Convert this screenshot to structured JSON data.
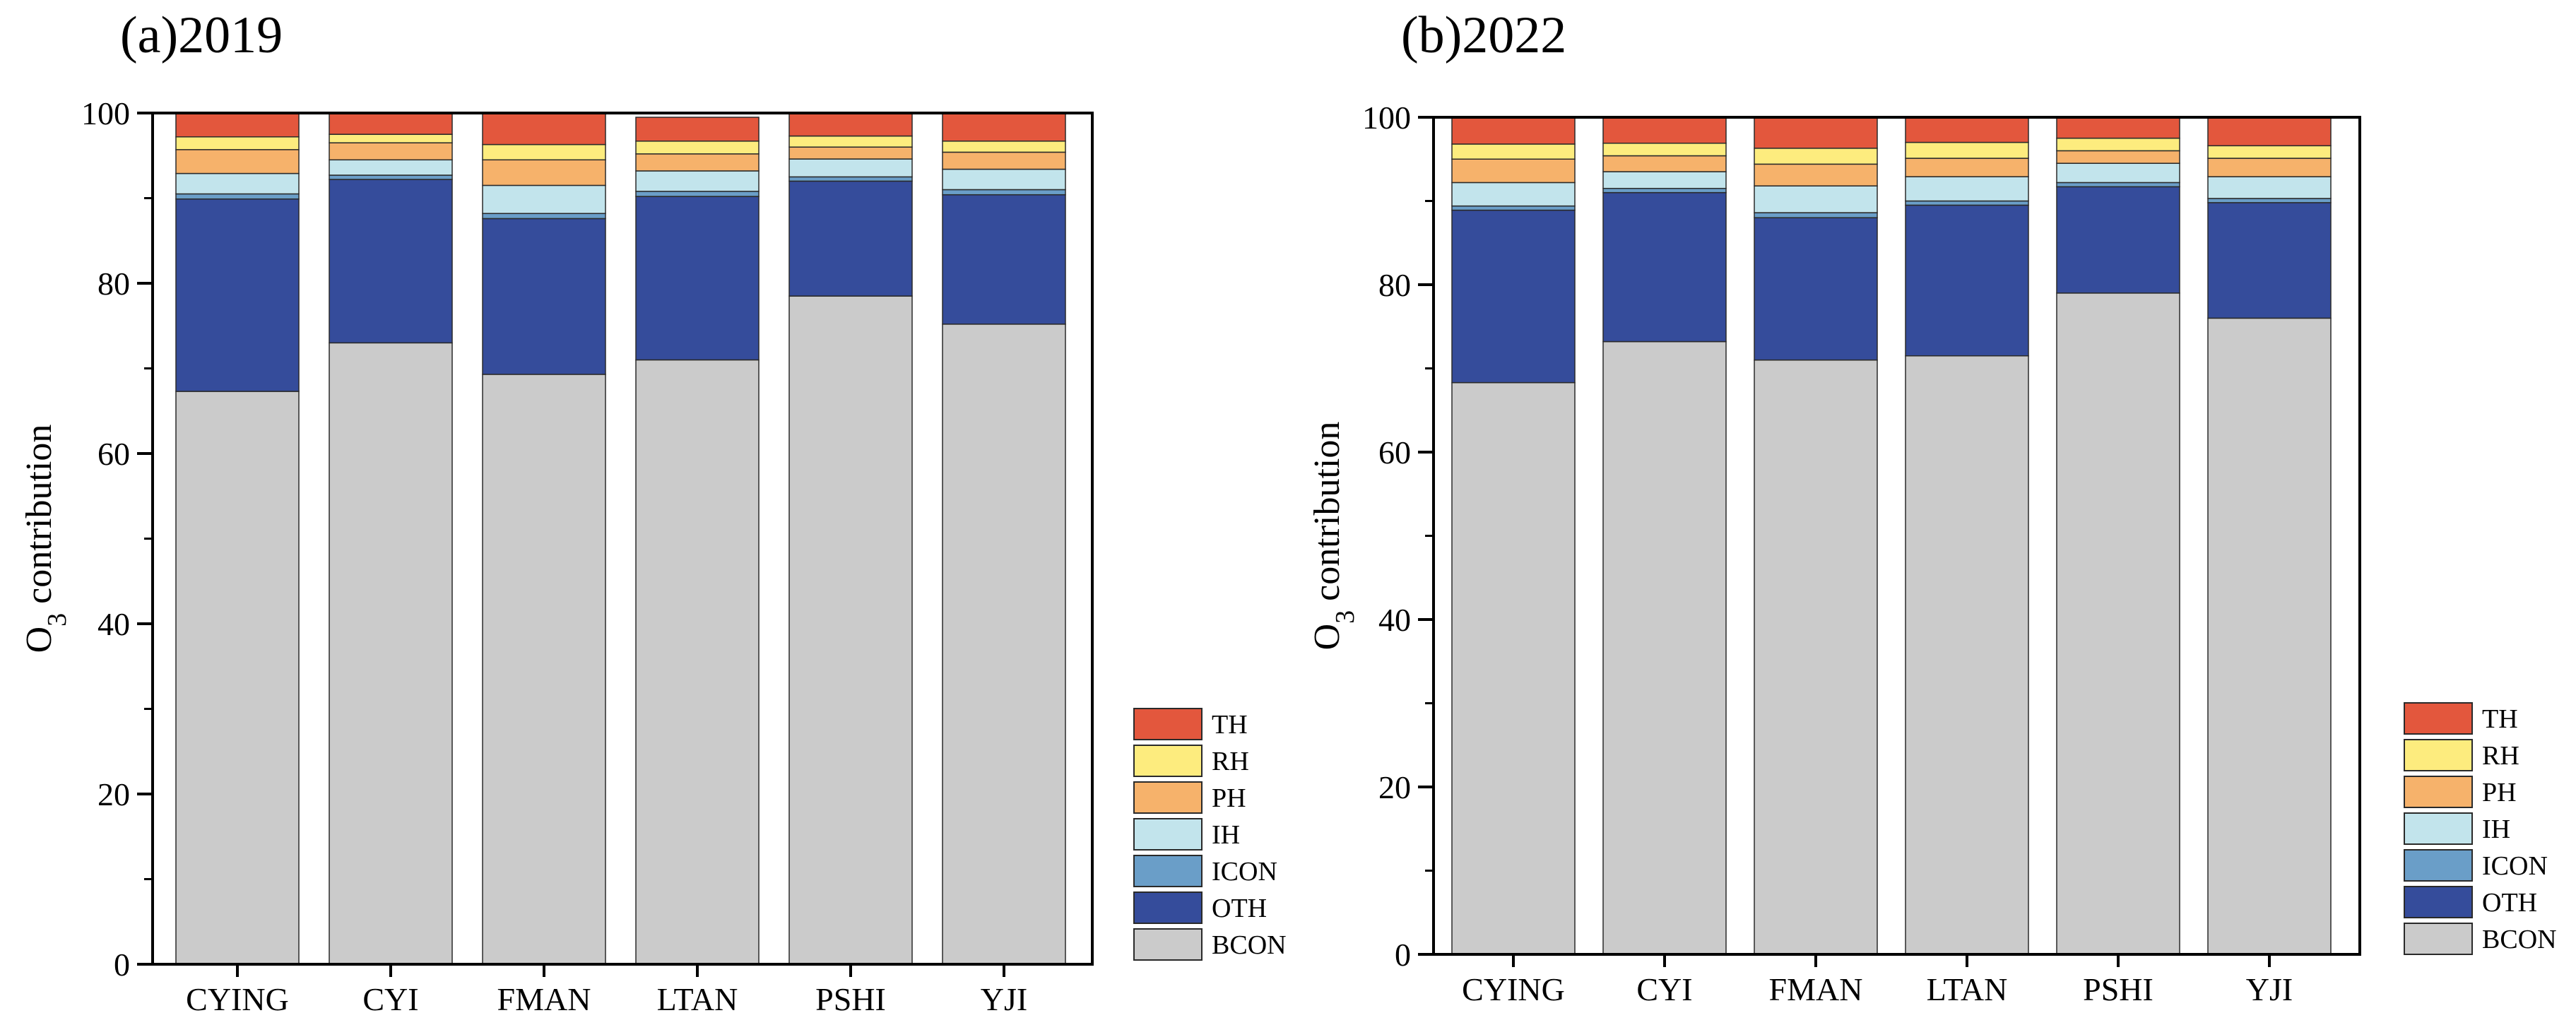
{
  "legend_order": [
    "TH",
    "RH",
    "PH",
    "IH",
    "ICON",
    "OTH",
    "BCON"
  ],
  "stack_order": [
    "BCON",
    "OTH",
    "ICON",
    "IH",
    "PH",
    "RH",
    "TH"
  ],
  "colors": {
    "TH": "#e3573d",
    "RH": "#fdec7e",
    "PH": "#f6b26b",
    "IH": "#c2e4ec",
    "ICON": "#6a9ec8",
    "OTH": "#354c9b",
    "BCON": "#cbcbcb"
  },
  "chart_data": [
    {
      "type": "bar",
      "stacked": true,
      "title": "(a)2019",
      "xlabel": "",
      "ylabel": "O3 contribution",
      "ylabel_main": "O",
      "ylabel_sub": "3",
      "ylabel_rest": " contribution",
      "ylim": [
        0,
        100
      ],
      "yticks": [
        "0",
        "20",
        "40",
        "60",
        "80",
        "100"
      ],
      "legend_position": "bottom-right",
      "categories": [
        "CYING",
        "CYI",
        "FMAN",
        "LTAN",
        "PSHI",
        "YJI"
      ],
      "series": [
        {
          "name": "BCON",
          "values": [
            67.3,
            73.0,
            69.3,
            71.0,
            78.5,
            75.2
          ]
        },
        {
          "name": "OTH",
          "values": [
            22.6,
            19.2,
            18.3,
            19.2,
            13.5,
            15.2
          ]
        },
        {
          "name": "ICON",
          "values": [
            0.6,
            0.5,
            0.6,
            0.6,
            0.5,
            0.6
          ]
        },
        {
          "name": "IH",
          "values": [
            2.4,
            1.8,
            3.3,
            2.4,
            2.1,
            2.4
          ]
        },
        {
          "name": "PH",
          "values": [
            2.8,
            2.0,
            3.0,
            2.0,
            1.4,
            2.0
          ]
        },
        {
          "name": "RH",
          "values": [
            1.5,
            1.0,
            1.8,
            1.5,
            1.3,
            1.3
          ]
        },
        {
          "name": "TH",
          "values": [
            2.8,
            2.5,
            3.7,
            2.8,
            2.7,
            3.3
          ]
        }
      ]
    },
    {
      "type": "bar",
      "stacked": true,
      "title": "(b)2022",
      "xlabel": "",
      "ylabel": "O3 contribution",
      "ylabel_main": "O",
      "ylabel_sub": "3",
      "ylabel_rest": " contribution",
      "ylim": [
        0,
        100
      ],
      "yticks": [
        "0",
        "20",
        "40",
        "60",
        "80",
        "100"
      ],
      "legend_position": "bottom-right",
      "categories": [
        "CYING",
        "CYI",
        "FMAN",
        "LTAN",
        "PSHI",
        "YJI"
      ],
      "series": [
        {
          "name": "BCON",
          "values": [
            68.3,
            73.2,
            71.0,
            71.5,
            79.0,
            76.0
          ]
        },
        {
          "name": "OTH",
          "values": [
            20.6,
            17.8,
            17.0,
            18.0,
            12.7,
            13.8
          ]
        },
        {
          "name": "ICON",
          "values": [
            0.5,
            0.5,
            0.6,
            0.5,
            0.5,
            0.5
          ]
        },
        {
          "name": "IH",
          "values": [
            2.8,
            2.0,
            3.2,
            2.9,
            2.3,
            2.6
          ]
        },
        {
          "name": "PH",
          "values": [
            2.8,
            1.9,
            2.6,
            2.2,
            1.5,
            2.2
          ]
        },
        {
          "name": "RH",
          "values": [
            1.8,
            1.5,
            1.9,
            1.9,
            1.5,
            1.5
          ]
        },
        {
          "name": "TH",
          "values": [
            3.2,
            3.1,
            3.7,
            3.0,
            2.5,
            3.4
          ]
        }
      ]
    }
  ]
}
